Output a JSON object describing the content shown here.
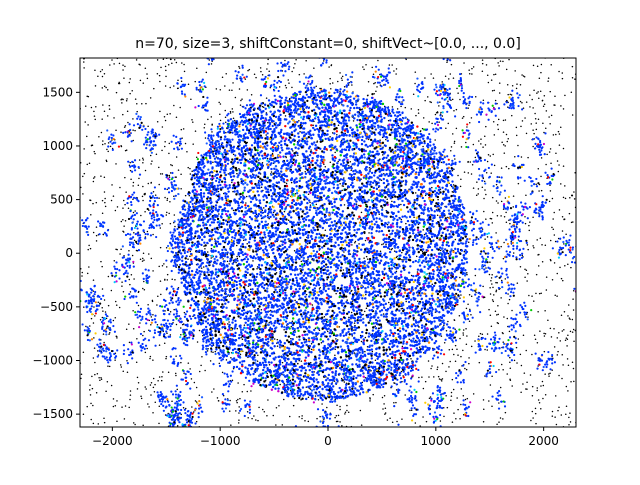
{
  "chart_data": {
    "type": "scatter",
    "title": "n=70, size=3, shiftConstant=0,  shiftVect~[0.0, ..., 0.0]",
    "xlabel": "",
    "ylabel": "",
    "xlim": [
      -2300,
      2300
    ],
    "ylim": [
      -1620,
      1820
    ],
    "xticks": [
      -2000,
      -1000,
      0,
      1000,
      2000
    ],
    "yticks": [
      -1500,
      -1000,
      -500,
      0,
      500,
      1000,
      1500
    ],
    "xtick_labels": [
      "−2000",
      "−1000",
      "0",
      "1000",
      "2000"
    ],
    "ytick_labels": [
      "−1500",
      "−1000",
      "−500",
      "0",
      "500",
      "1000",
      "1500"
    ],
    "grid": false,
    "legend": "none",
    "series_colors": {
      "background_points": "#000000",
      "primary": "#0033ff",
      "secondary": "#1a5cff",
      "accents": [
        "#ff0000",
        "#00cc00",
        "#ffcc00",
        "#00ccff",
        "#cc00cc",
        "#ff8800"
      ]
    },
    "point_clouds": [
      {
        "role": "background",
        "distribution": "uniform",
        "count": 2600,
        "x_range": [
          -2300,
          2300
        ],
        "y_range": [
          -1620,
          1820
        ]
      },
      {
        "role": "central-disk",
        "distribution": "disk",
        "center": [
          -50,
          80
        ],
        "radius_x": 1350,
        "radius_y": 1450,
        "count": 9000
      },
      {
        "role": "clusters",
        "distribution": "ring-clusters",
        "inner_radius": 1300,
        "outer_radius": 2500,
        "cluster_count": 260,
        "points_per_cluster": 14
      }
    ],
    "description_counts": {
      "n": 70,
      "size": 3,
      "shiftConstant": 0
    }
  }
}
